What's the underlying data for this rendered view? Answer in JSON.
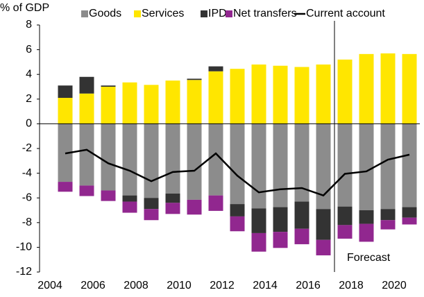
{
  "chart_data": {
    "type": "bar",
    "ylabel": "% of GDP",
    "categories": [
      "2004",
      null,
      "2006",
      null,
      "2008",
      null,
      "2010",
      null,
      "2012",
      null,
      "2014",
      null,
      "2016",
      null,
      "2018",
      null,
      "2020"
    ],
    "series": [
      {
        "name": "Goods",
        "color": "#8c8c8c",
        "values": [
          -4.7,
          -5.0,
          -5.4,
          -5.8,
          -6.0,
          -5.65,
          -6.15,
          -5.8,
          -6.5,
          -6.85,
          -6.75,
          -6.3,
          -6.9,
          -6.7,
          -7.0,
          -6.9,
          -6.75
        ]
      },
      {
        "name": "Services",
        "color": "#ffe600",
        "values": [
          2.1,
          2.45,
          3.0,
          3.35,
          3.15,
          3.5,
          3.55,
          4.25,
          4.45,
          4.8,
          4.7,
          4.6,
          4.8,
          5.2,
          5.65,
          5.7,
          5.65
        ]
      },
      {
        "name": "IPD",
        "color": "#333333",
        "values": [
          1.0,
          1.35,
          0.1,
          -0.5,
          -0.9,
          -0.75,
          0.1,
          0.4,
          -1.0,
          -2.0,
          -2.0,
          -2.2,
          -2.5,
          -1.5,
          -1.1,
          -0.9,
          -0.85
        ]
      },
      {
        "name": "Net transfers",
        "color": "#91278f",
        "values": [
          -0.8,
          -0.85,
          -0.85,
          -0.9,
          -0.9,
          -0.9,
          -1.2,
          -1.25,
          -1.2,
          -1.5,
          -1.3,
          -1.25,
          -1.25,
          -1.1,
          -1.45,
          -0.75,
          -0.55
        ]
      },
      {
        "name": "Current account",
        "type": "line",
        "color": "#000000",
        "values": [
          -2.4,
          -2.1,
          -3.2,
          -3.8,
          -4.65,
          -3.9,
          -3.8,
          -2.4,
          -4.2,
          -5.55,
          -5.3,
          -5.2,
          -5.8,
          -4.05,
          -3.85,
          -2.9,
          -2.5
        ]
      }
    ],
    "annotation": "Forecast",
    "ylim": [
      -12,
      8
    ],
    "yticks": [
      -12,
      -10,
      -8,
      -6,
      -4,
      -2,
      0,
      2,
      4,
      6,
      8
    ],
    "grid": false
  }
}
